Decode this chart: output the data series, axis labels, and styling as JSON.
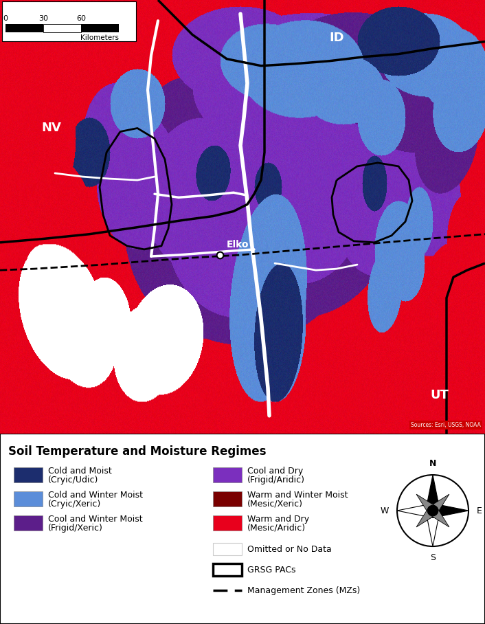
{
  "title": "Soil Temperature and Moisture Regimes",
  "left_items": [
    {
      "label_line1": "Cold and Moist",
      "label_line2": "(Cryic/Udic)",
      "color": "#1c2d6e"
    },
    {
      "label_line1": "Cold and Winter Moist",
      "label_line2": "(Cryic/Xeric)",
      "color": "#5b8dd9"
    },
    {
      "label_line1": "Cool and Winter Moist",
      "label_line2": "(Frigid/Xeric)",
      "color": "#5c1e8a"
    }
  ],
  "right_items": [
    {
      "label_line1": "Cool and Dry",
      "label_line2": "(Frigid/Aridic)",
      "color": "#7b2fbe"
    },
    {
      "label_line1": "Warm and Winter Moist",
      "label_line2": "(Mesic/Xeric)",
      "color": "#7a0000"
    },
    {
      "label_line1": "Warm and Dry",
      "label_line2": "(Mesic/Aridic)",
      "color": "#e8001c"
    }
  ],
  "extra_items": [
    {
      "label": "Omitted or No Data"
    },
    {
      "label": "GRSG PACs"
    },
    {
      "label": "Management Zones (MZs)"
    }
  ],
  "map_bg_color": "#e8001c",
  "sources_text": "Sources: Esri, USGS, NOAA",
  "fig_width": 7.06,
  "fig_height": 9.08,
  "map_colors": {
    "dark_blue": "#1c2d6e",
    "med_blue": "#5b8dd9",
    "dark_purple": "#5c1e8a",
    "med_purple": "#7b2fbe",
    "dark_red": "#7a0000",
    "bright_red": "#e8001c",
    "white": "#ffffff"
  }
}
